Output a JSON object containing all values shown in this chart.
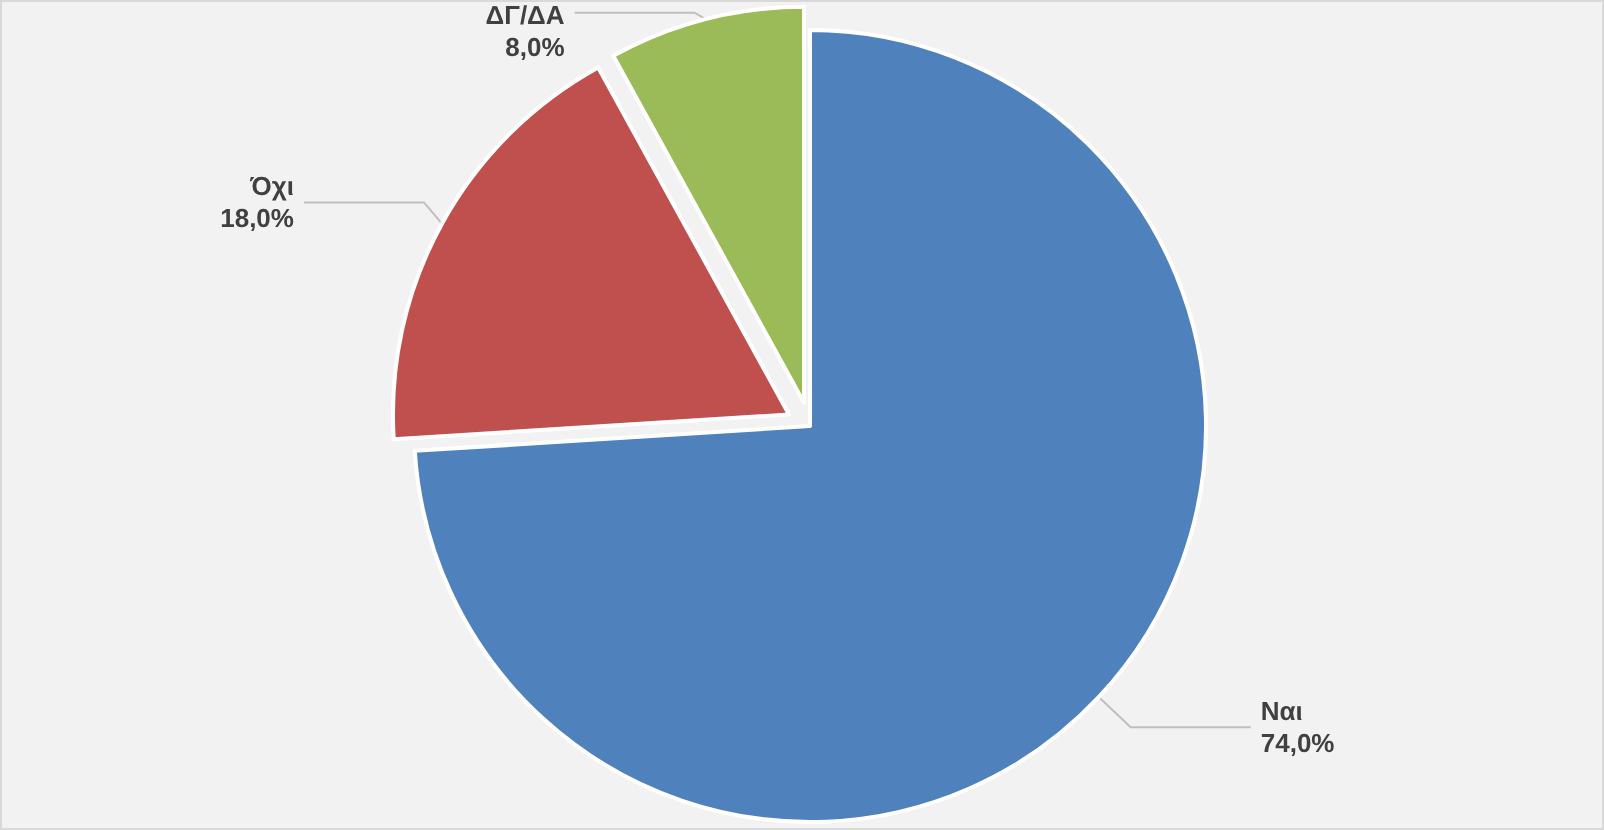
{
  "chart_data": {
    "type": "pie",
    "categories": [
      "Ναι",
      "Όχι",
      "ΔΓ/ΔΑ"
    ],
    "values": [
      74,
      18,
      8
    ],
    "value_labels": [
      "74,0%",
      "18,0%",
      "8,0%"
    ],
    "colors": [
      "#4f81bd",
      "#c0504d",
      "#9bbb59"
    ]
  }
}
